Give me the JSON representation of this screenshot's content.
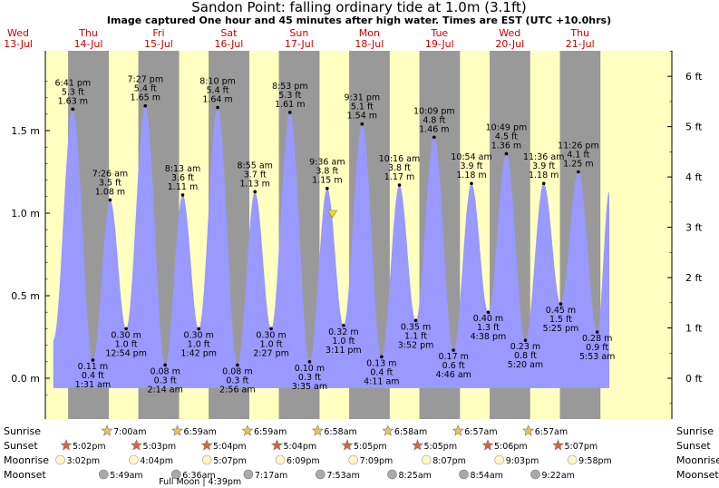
{
  "title": "Sandon Point: falling  ordinary tide at 1.0m (3.1ft)",
  "subtitle": "Image captured One hour and 45 minutes after high water. Times are EST (UTC +10.0hrs)",
  "current_marker_label": "",
  "days": [
    {
      "name": "Wed",
      "date": "13-Jul"
    },
    {
      "name": "Thu",
      "date": "14-Jul"
    },
    {
      "name": "Fri",
      "date": "15-Jul"
    },
    {
      "name": "Sat",
      "date": "16-Jul"
    },
    {
      "name": "Sun",
      "date": "17-Jul"
    },
    {
      "name": "Mon",
      "date": "18-Jul"
    },
    {
      "name": "Tue",
      "date": "19-Jul"
    },
    {
      "name": "Wed",
      "date": "20-Jul"
    },
    {
      "name": "Thu",
      "date": "21-Jul"
    }
  ],
  "chart_data": {
    "type": "area",
    "x_unit": "hours from 00:00 13-Jul (EST)",
    "ylabel_left": "m",
    "ylabel_right": "ft",
    "ylim_m": [
      -0.18,
      1.98
    ],
    "y_ticks_m": [
      "0.0 m",
      "0.5 m",
      "1.0 m",
      "1.5 m"
    ],
    "y_ticks_ft": [
      "0 ft",
      "1 ft",
      "2 ft",
      "3 ft",
      "4 ft",
      "5 ft",
      "6 ft"
    ],
    "fill_color": "#9999ff",
    "night_color": "#999999",
    "day_color": "#ffffc0",
    "extremes": [
      {
        "type": "high",
        "time": "6:41 pm",
        "ft": "5.3 ft",
        "m": "1.63 m",
        "h": 18.68,
        "v": 1.63
      },
      {
        "type": "low",
        "time": "1:31 am",
        "ft": "0.4 ft",
        "m": "0.11 m",
        "h": 25.52,
        "v": 0.11
      },
      {
        "type": "high",
        "time": "7:26 am",
        "ft": "3.5 ft",
        "m": "1.08 m",
        "h": 31.43,
        "v": 1.08
      },
      {
        "type": "low",
        "time": "12:54 pm",
        "ft": "1.0 ft",
        "m": "0.30 m",
        "h": 36.9,
        "v": 0.3
      },
      {
        "type": "high",
        "time": "7:27 pm",
        "ft": "5.4 ft",
        "m": "1.65 m",
        "h": 43.45,
        "v": 1.65
      },
      {
        "type": "low",
        "time": "2:14 am",
        "ft": "0.3 ft",
        "m": "0.08 m",
        "h": 50.23,
        "v": 0.08
      },
      {
        "type": "high",
        "time": "8:13 am",
        "ft": "3.6 ft",
        "m": "1.11 m",
        "h": 56.22,
        "v": 1.11
      },
      {
        "type": "low",
        "time": "1:42 pm",
        "ft": "1.0 ft",
        "m": "0.30 m",
        "h": 61.7,
        "v": 0.3
      },
      {
        "type": "high",
        "time": "8:10 pm",
        "ft": "5.4 ft",
        "m": "1.64 m",
        "h": 68.17,
        "v": 1.64
      },
      {
        "type": "low",
        "time": "2:56 am",
        "ft": "0.3 ft",
        "m": "0.08 m",
        "h": 74.93,
        "v": 0.08
      },
      {
        "type": "high",
        "time": "8:55 am",
        "ft": "3.7 ft",
        "m": "1.13 m",
        "h": 80.92,
        "v": 1.13
      },
      {
        "type": "low",
        "time": "2:27 pm",
        "ft": "1.0 ft",
        "m": "0.30 m",
        "h": 86.45,
        "v": 0.3
      },
      {
        "type": "high",
        "time": "8:53 pm",
        "ft": "5.3 ft",
        "m": "1.61 m",
        "h": 92.88,
        "v": 1.61
      },
      {
        "type": "low",
        "time": "3:35 am",
        "ft": "0.3 ft",
        "m": "0.10 m",
        "h": 99.58,
        "v": 0.1
      },
      {
        "type": "high",
        "time": "9:36 am",
        "ft": "3.8 ft",
        "m": "1.15 m",
        "h": 105.6,
        "v": 1.15
      },
      {
        "type": "low",
        "time": "3:11 pm",
        "ft": "1.0 ft",
        "m": "0.32 m",
        "h": 111.18,
        "v": 0.32
      },
      {
        "type": "high",
        "time": "9:31 pm",
        "ft": "5.1 ft",
        "m": "1.54 m",
        "h": 117.52,
        "v": 1.54
      },
      {
        "type": "low",
        "time": "4:11 am",
        "ft": "0.4 ft",
        "m": "0.13 m",
        "h": 124.18,
        "v": 0.13
      },
      {
        "type": "high",
        "time": "10:16 am",
        "ft": "3.8 ft",
        "m": "1.17 m",
        "h": 130.27,
        "v": 1.17
      },
      {
        "type": "low",
        "time": "3:52 pm",
        "ft": "1.1 ft",
        "m": "0.35 m",
        "h": 135.87,
        "v": 0.35
      },
      {
        "type": "high",
        "time": "10:09 pm",
        "ft": "4.8 ft",
        "m": "1.46 m",
        "h": 142.15,
        "v": 1.46
      },
      {
        "type": "low",
        "time": "4:46 am",
        "ft": "0.6 ft",
        "m": "0.17 m",
        "h": 148.77,
        "v": 0.17
      },
      {
        "type": "high",
        "time": "10:54 am",
        "ft": "3.9 ft",
        "m": "1.18 m",
        "h": 154.9,
        "v": 1.18
      },
      {
        "type": "low",
        "time": "4:38 pm",
        "ft": "1.3 ft",
        "m": "0.40 m",
        "h": 160.63,
        "v": 0.4
      },
      {
        "type": "high",
        "time": "10:49 pm",
        "ft": "4.5 ft",
        "m": "1.36 m",
        "h": 166.82,
        "v": 1.36
      },
      {
        "type": "low",
        "time": "5:20 am",
        "ft": "0.8 ft",
        "m": "0.23 m",
        "h": 173.33,
        "v": 0.23
      },
      {
        "type": "high",
        "time": "11:36 am",
        "ft": "3.9 ft",
        "m": "1.18 m",
        "h": 179.6,
        "v": 1.18
      },
      {
        "type": "low",
        "time": "5:25 pm",
        "ft": "1.5 ft",
        "m": "0.45 m",
        "h": 185.42,
        "v": 0.45
      },
      {
        "type": "high",
        "time": "11:26 pm",
        "ft": "4.1 ft",
        "m": "1.25 m",
        "h": 191.43,
        "v": 1.25
      },
      {
        "type": "low",
        "time": "5:53 am",
        "ft": "0.9 ft",
        "m": "0.28 m",
        "h": 197.88,
        "v": 0.28
      }
    ],
    "data_start_h": 12.0,
    "data_start_v": 0.23,
    "data_end_h": 202.0,
    "data_end_v": 1.13,
    "current_time_h": 107.35,
    "current_level_m": 1.0
  },
  "astro": {
    "row_labels": [
      "Sunrise",
      "Sunset",
      "Moonrise",
      "Moonset"
    ],
    "sunrise": [
      {
        "time": "7:00am",
        "h": 31.0
      },
      {
        "time": "6:59am",
        "h": 54.98
      },
      {
        "time": "6:59am",
        "h": 78.98
      },
      {
        "time": "6:58am",
        "h": 102.97
      },
      {
        "time": "6:58am",
        "h": 126.97
      },
      {
        "time": "6:57am",
        "h": 150.95
      },
      {
        "time": "6:57am",
        "h": 174.95
      }
    ],
    "sunset": [
      {
        "time": "5:02pm",
        "h": 17.03
      },
      {
        "time": "5:03pm",
        "h": 41.05
      },
      {
        "time": "5:04pm",
        "h": 65.07
      },
      {
        "time": "5:04pm",
        "h": 89.07
      },
      {
        "time": "5:05pm",
        "h": 113.08
      },
      {
        "time": "5:05pm",
        "h": 137.08
      },
      {
        "time": "5:06pm",
        "h": 161.1
      },
      {
        "time": "5:07pm",
        "h": 185.12
      }
    ],
    "moonrise": [
      {
        "time": "3:02pm",
        "h": 15.03
      },
      {
        "time": "4:04pm",
        "h": 40.07
      },
      {
        "time": "5:07pm",
        "h": 65.12
      },
      {
        "time": "6:09pm",
        "h": 90.15
      },
      {
        "time": "7:09pm",
        "h": 115.15
      },
      {
        "time": "8:07pm",
        "h": 140.12
      },
      {
        "time": "9:03pm",
        "h": 165.05
      },
      {
        "time": "9:58pm",
        "h": 189.97
      }
    ],
    "moonset": [
      {
        "time": "5:49am",
        "h": 29.82
      },
      {
        "time": "6:36am",
        "h": 54.6
      },
      {
        "time": "7:17am",
        "h": 79.28
      },
      {
        "time": "7:53am",
        "h": 103.88
      },
      {
        "time": "8:25am",
        "h": 128.42
      },
      {
        "time": "8:54am",
        "h": 152.9
      },
      {
        "time": "9:22am",
        "h": 177.37
      }
    ],
    "full_moon_note": "Full Moon | 4:39pm",
    "full_moon_h": 64.65,
    "sun_color": "#e8c84a",
    "sunset_color": "#e06040",
    "moonrise_color": "#fdf8c0",
    "moonset_color": "#aaaaaa"
  }
}
